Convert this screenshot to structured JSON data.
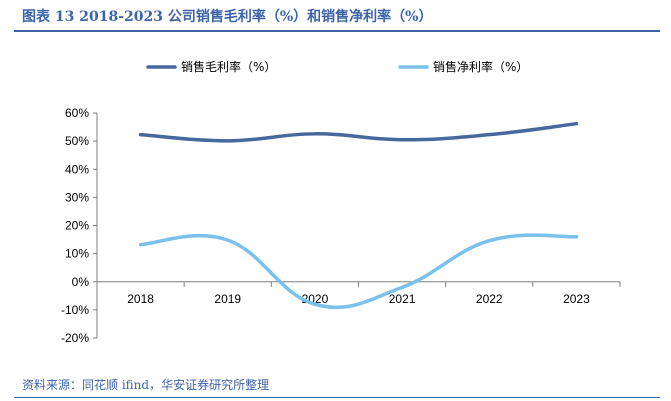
{
  "header": {
    "title": "图表 13 2018-2023 公司销售毛利率（%）和销售净利率（%）"
  },
  "footer": {
    "source": "资料来源：同花顺 ifind，华安证券研究所整理"
  },
  "chart_data": {
    "type": "line",
    "title": "图表 13 2018-2023 公司销售毛利率（%）和销售净利率（%）",
    "categories": [
      "2018",
      "2019",
      "2020",
      "2021",
      "2022",
      "2023"
    ],
    "series": [
      {
        "name": "销售毛利率（%）",
        "values": [
          52.3,
          50.1,
          52.6,
          50.5,
          52.3,
          56.2
        ],
        "color": "#45689d"
      },
      {
        "name": "销售净利率（%）",
        "values": [
          13.2,
          14.8,
          -8.0,
          -2.0,
          14.6,
          16.0
        ],
        "color": "#79c1ec"
      }
    ],
    "ylim": [
      -20,
      60
    ],
    "yticks": [
      -20,
      -10,
      0,
      10,
      20,
      30,
      40,
      50,
      60
    ],
    "ytick_labels": [
      "-20%",
      "-10%",
      "0%",
      "10%",
      "20%",
      "30%",
      "40%",
      "50%",
      "60%"
    ],
    "y_format": "percent",
    "smooth": true,
    "grid": false,
    "legend_position": "top"
  }
}
